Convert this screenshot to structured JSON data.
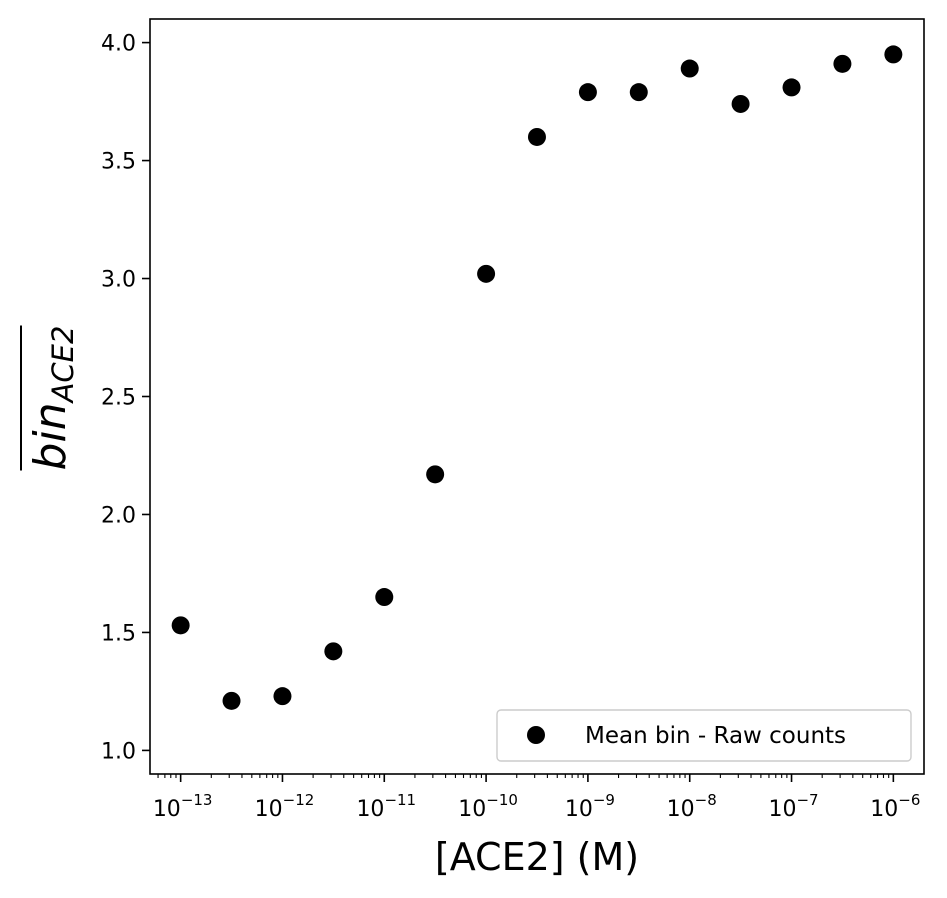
{
  "chart_data": {
    "type": "scatter",
    "xscale": "log",
    "xlim": [
      5e-14,
      2e-06
    ],
    "ylim": [
      0.9,
      4.1
    ],
    "xlabel": "[ACE2] (M)",
    "ylabel": {
      "base": "bin",
      "subscript": "ACE2",
      "overline": true
    },
    "x_tick_labels": [
      {
        "value": 1e-13,
        "base": "10",
        "exp": "−13"
      },
      {
        "value": 1e-12,
        "base": "10",
        "exp": "−12"
      },
      {
        "value": 1e-11,
        "base": "10",
        "exp": "−11"
      },
      {
        "value": 1e-10,
        "base": "10",
        "exp": "−10"
      },
      {
        "value": 1e-09,
        "base": "10",
        "exp": "−9"
      },
      {
        "value": 1e-08,
        "base": "10",
        "exp": "−8"
      },
      {
        "value": 1e-07,
        "base": "10",
        "exp": "−7"
      },
      {
        "value": 1e-06,
        "base": "10",
        "exp": "−6"
      }
    ],
    "y_ticks": [
      1.0,
      1.5,
      2.0,
      2.5,
      3.0,
      3.5,
      4.0
    ],
    "y_tick_labels": [
      "1.0",
      "1.5",
      "2.0",
      "2.5",
      "3.0",
      "3.5",
      "4.0"
    ],
    "grid": false,
    "legend_position": "lower-right",
    "series": [
      {
        "name": "Mean bin - Raw counts",
        "color": "#000000",
        "marker": "circle",
        "x": [
          1e-13,
          3.16e-13,
          1e-12,
          3.16e-12,
          1e-11,
          3.16e-11,
          1e-10,
          3.16e-10,
          1e-09,
          3.16e-09,
          1e-08,
          3.16e-08,
          1e-07,
          3.16e-07,
          1e-06
        ],
        "y": [
          1.53,
          1.21,
          1.23,
          1.42,
          1.65,
          2.17,
          3.02,
          3.6,
          3.79,
          3.79,
          3.89,
          3.74,
          3.81,
          3.91,
          3.95
        ]
      }
    ]
  }
}
